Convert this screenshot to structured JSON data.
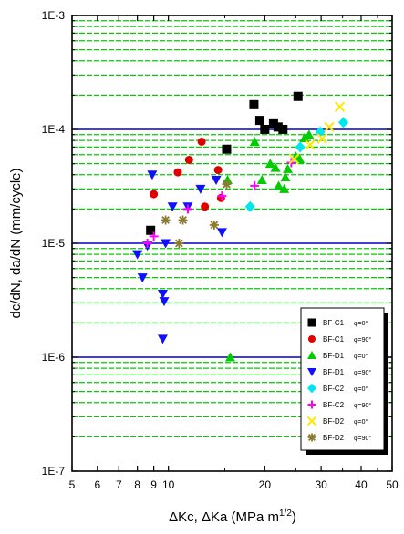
{
  "chart_data": {
    "type": "scatter",
    "title": "",
    "xlabel": "ΔKc, ΔKa (MPa m",
    "xlabel_sup": "1/2",
    "xlabel_close": ")",
    "ylabel": "dc/dN, da/dN (mm/cycle)",
    "x_scale": "log",
    "y_scale": "log",
    "xlim": [
      5,
      50
    ],
    "ylim": [
      1e-07,
      0.001
    ],
    "x_ticks": [
      {
        "value": 5,
        "label": "5"
      },
      {
        "value": 6,
        "label": "6"
      },
      {
        "value": 7,
        "label": "7"
      },
      {
        "value": 8,
        "label": "8"
      },
      {
        "value": 9,
        "label": "9"
      },
      {
        "value": 10,
        "label": "10"
      },
      {
        "value": 20,
        "label": "20"
      },
      {
        "value": 30,
        "label": "30"
      },
      {
        "value": 40,
        "label": "40"
      },
      {
        "value": 50,
        "label": "50"
      }
    ],
    "x_minor_ticks": [
      15,
      25,
      35,
      45
    ],
    "y_ticks": [
      {
        "value": 1e-07,
        "label": "1E-7"
      },
      {
        "value": 1e-06,
        "label": "1E-6"
      },
      {
        "value": 1e-05,
        "label": "1E-5"
      },
      {
        "value": 0.0001,
        "label": "1E-4"
      },
      {
        "value": 0.001,
        "label": "1E-3"
      }
    ],
    "grid": {
      "major_y": true,
      "minor_y": true,
      "major_y_color": "#0000cc",
      "minor_y_color": "#00cc00",
      "minor_y_dashed": true
    },
    "legend_position": "bottom-right",
    "series": [
      {
        "name": "BF-C1",
        "angle": "φ=0°",
        "marker": "square",
        "color": "#000000",
        "points": [
          {
            "x": 8.8,
            "y": 1.3e-05
          },
          {
            "x": 15.2,
            "y": 6.7e-05
          },
          {
            "x": 18.5,
            "y": 0.000165
          },
          {
            "x": 19.3,
            "y": 0.00012
          },
          {
            "x": 20.0,
            "y": 0.0001
          },
          {
            "x": 21.3,
            "y": 0.000112
          },
          {
            "x": 22.0,
            "y": 0.000105
          },
          {
            "x": 22.8,
            "y": 0.0001
          },
          {
            "x": 25.4,
            "y": 0.000195
          }
        ]
      },
      {
        "name": "BF-C1",
        "angle": "φ=90°",
        "marker": "circle",
        "color": "#e00000",
        "points": [
          {
            "x": 9.0,
            "y": 2.7e-05
          },
          {
            "x": 10.7,
            "y": 4.2e-05
          },
          {
            "x": 11.6,
            "y": 5.4e-05
          },
          {
            "x": 12.7,
            "y": 7.8e-05
          },
          {
            "x": 14.3,
            "y": 4.4e-05
          },
          {
            "x": 14.6,
            "y": 2.5e-05
          },
          {
            "x": 13.0,
            "y": 2.1e-05
          }
        ]
      },
      {
        "name": "BF-D1",
        "angle": "φ=0°",
        "marker": "triangle-up",
        "color": "#00cc00",
        "points": [
          {
            "x": 15.6,
            "y": 1e-06
          },
          {
            "x": 15.3,
            "y": 3.6e-05
          },
          {
            "x": 18.6,
            "y": 7.8e-05
          },
          {
            "x": 19.6,
            "y": 3.6e-05
          },
          {
            "x": 20.8,
            "y": 5e-05
          },
          {
            "x": 21.6,
            "y": 4.6e-05
          },
          {
            "x": 22.1,
            "y": 3.2e-05
          },
          {
            "x": 23.0,
            "y": 3e-05
          },
          {
            "x": 23.2,
            "y": 3.8e-05
          },
          {
            "x": 23.6,
            "y": 4.5e-05
          },
          {
            "x": 25.0,
            "y": 5.8e-05
          },
          {
            "x": 25.7,
            "y": 5.5e-05
          },
          {
            "x": 26.6,
            "y": 8.4e-05
          },
          {
            "x": 27.5,
            "y": 9e-05
          }
        ]
      },
      {
        "name": "BF-D1",
        "angle": "φ=90°",
        "marker": "triangle-down",
        "color": "#1010ff",
        "points": [
          {
            "x": 8.0,
            "y": 8e-06
          },
          {
            "x": 8.3,
            "y": 5e-06
          },
          {
            "x": 8.6,
            "y": 9.5e-06
          },
          {
            "x": 8.9,
            "y": 4e-05
          },
          {
            "x": 9.6,
            "y": 3.6e-06
          },
          {
            "x": 9.7,
            "y": 3.1e-06
          },
          {
            "x": 9.6,
            "y": 1.45e-06
          },
          {
            "x": 9.8,
            "y": 1e-05
          },
          {
            "x": 10.3,
            "y": 2.1e-05
          },
          {
            "x": 11.5,
            "y": 2.1e-05
          },
          {
            "x": 12.6,
            "y": 3e-05
          },
          {
            "x": 14.1,
            "y": 3.6e-05
          },
          {
            "x": 14.7,
            "y": 1.25e-05
          }
        ]
      },
      {
        "name": "BF-C2",
        "angle": "φ=0°",
        "marker": "diamond",
        "color": "#00e5ee",
        "points": [
          {
            "x": 18.0,
            "y": 2.1e-05
          },
          {
            "x": 25.8,
            "y": 7e-05
          },
          {
            "x": 29.8,
            "y": 9.5e-05
          },
          {
            "x": 35.2,
            "y": 0.000115
          }
        ]
      },
      {
        "name": "BF-C2",
        "angle": "φ=90°",
        "marker": "plus",
        "color": "#ff00ff",
        "points": [
          {
            "x": 8.6,
            "y": 1e-05
          },
          {
            "x": 9.0,
            "y": 1.15e-05
          },
          {
            "x": 11.5,
            "y": 2e-05
          },
          {
            "x": 14.7,
            "y": 2.6e-05
          },
          {
            "x": 18.6,
            "y": 3.2e-05
          },
          {
            "x": 24.2,
            "y": 5.1e-05
          }
        ]
      },
      {
        "name": "BF-D2",
        "angle": "φ=0°",
        "marker": "x",
        "color": "#ffe800",
        "points": [
          {
            "x": 24.7,
            "y": 5.5e-05
          },
          {
            "x": 27.7,
            "y": 7.3e-05
          },
          {
            "x": 30.2,
            "y": 8.3e-05
          },
          {
            "x": 31.8,
            "y": 0.000105
          },
          {
            "x": 34.3,
            "y": 0.000158
          }
        ]
      },
      {
        "name": "BF-D2",
        "angle": "φ=90°",
        "marker": "asterisk",
        "color": "#8b7a30",
        "points": [
          {
            "x": 9.8,
            "y": 1.6e-05
          },
          {
            "x": 10.8,
            "y": 1e-05
          },
          {
            "x": 11.1,
            "y": 1.6e-05
          },
          {
            "x": 13.9,
            "y": 1.45e-05
          },
          {
            "x": 15.2,
            "y": 3.3e-05
          }
        ]
      }
    ]
  }
}
